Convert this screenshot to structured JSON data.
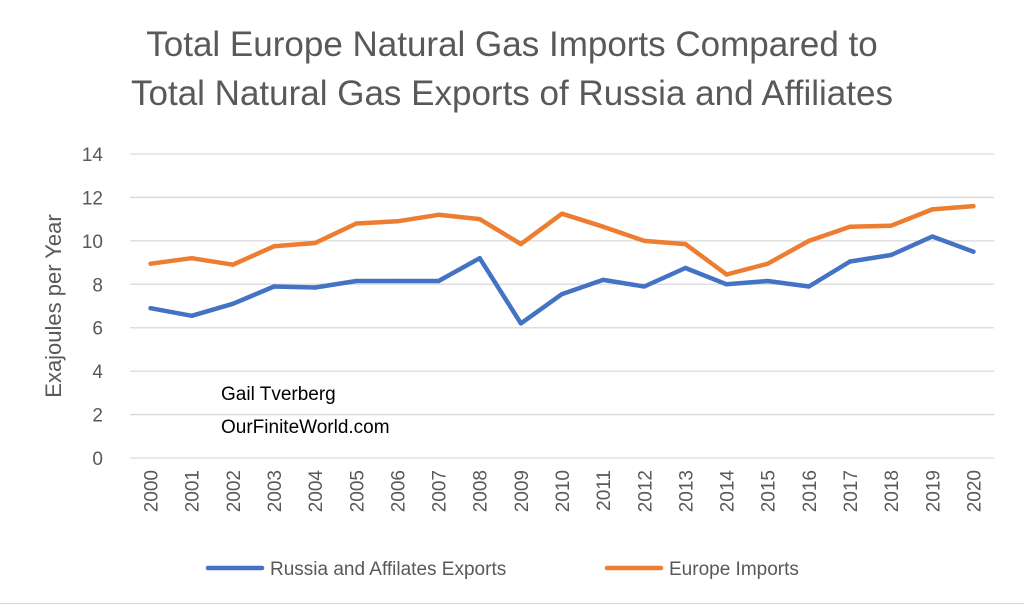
{
  "chart_data": {
    "type": "line",
    "title_line1": "Total Europe Natural Gas Imports Compared to",
    "title_line2": "Total Natural Gas Exports of Russia and Affiliates",
    "ylabel": "Exajoules per Year",
    "xlabel": "",
    "ylim": [
      0,
      14
    ],
    "yticks": [
      "0",
      "2",
      "4",
      "6",
      "8",
      "10",
      "12",
      "14"
    ],
    "grid": true,
    "legend_position": "bottom",
    "categories": [
      "2000",
      "2001",
      "2002",
      "2003",
      "2004",
      "2005",
      "2006",
      "2007",
      "2008",
      "2009",
      "2010",
      "2011",
      "2012",
      "2013",
      "2014",
      "2015",
      "2016",
      "2017",
      "2018",
      "2019",
      "2020"
    ],
    "series": [
      {
        "name": "Russia and Affilates Exports",
        "color": "#4472c4",
        "values": [
          6.9,
          6.55,
          7.1,
          7.9,
          7.85,
          8.15,
          8.15,
          8.15,
          9.2,
          6.2,
          7.55,
          8.2,
          7.9,
          8.75,
          8.0,
          8.15,
          7.9,
          9.05,
          9.35,
          10.2,
          9.5
        ]
      },
      {
        "name": "Europe Imports",
        "color": "#ed7d31",
        "values": [
          8.95,
          9.2,
          8.9,
          9.75,
          9.9,
          10.8,
          10.9,
          11.2,
          11.0,
          9.85,
          11.25,
          10.65,
          10.0,
          9.85,
          8.45,
          8.95,
          10.0,
          10.65,
          10.7,
          11.45,
          11.6
        ]
      }
    ],
    "annotation": [
      "Gail Tverberg",
      "OurFiniteWorld.com"
    ]
  }
}
